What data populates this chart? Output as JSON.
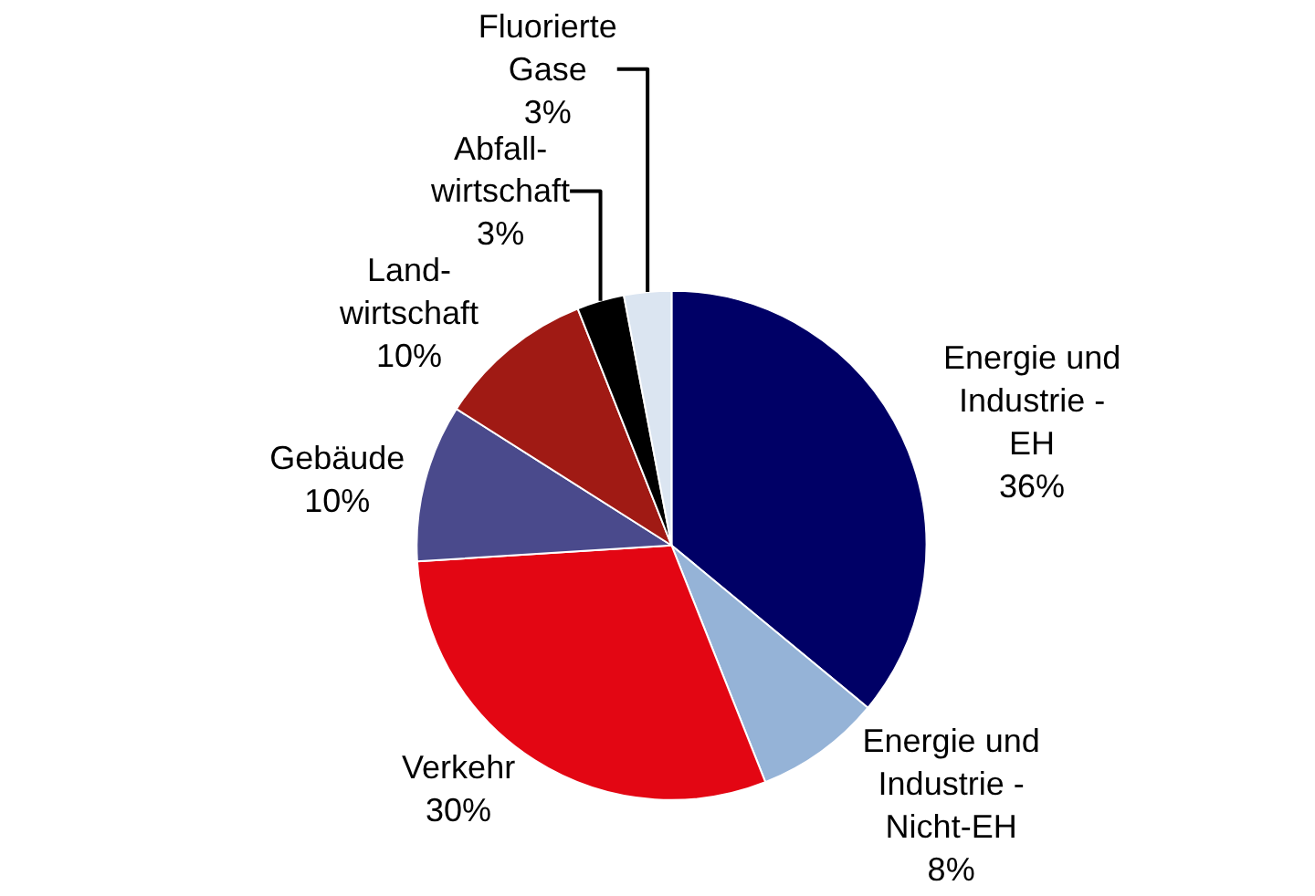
{
  "chart_data": {
    "type": "pie",
    "categories": [
      "Energie und\nIndustrie -\nEH",
      "Energie und\nIndustrie -\nNicht-EH",
      "Verkehr",
      "Gebäude",
      "Land-\nwirtschaft",
      "Abfall-\nwirtschaft",
      "Fluorierte\nGase"
    ],
    "values": [
      36,
      8,
      30,
      10,
      10,
      3,
      3
    ],
    "value_labels": [
      "36%",
      "8%",
      "30%",
      "10%",
      "10%",
      "3%",
      "3%"
    ],
    "colors": [
      "#000066",
      "#95b3d7",
      "#e30613",
      "#4a4a8c",
      "#a01a14",
      "#000000",
      "#dbe5f1"
    ],
    "legend": false
  }
}
